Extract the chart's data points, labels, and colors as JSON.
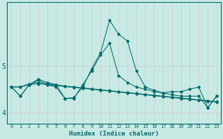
{
  "xlabel": "Humidex (Indice chaleur)",
  "ylabel": "",
  "bg_color": "#c8eae4",
  "line_color": "#006b6b",
  "grid_color": "#e8e8e8",
  "xlim": [
    -0.5,
    23.5
  ],
  "ylim": [
    3.75,
    6.4
  ],
  "yticks": [
    4,
    5
  ],
  "xticks": [
    0,
    1,
    2,
    3,
    4,
    5,
    6,
    7,
    8,
    9,
    10,
    11,
    12,
    13,
    14,
    15,
    16,
    17,
    18,
    19,
    20,
    21,
    22,
    23
  ],
  "series": [
    [
      4.55,
      4.35,
      4.6,
      4.7,
      4.6,
      4.55,
      4.3,
      4.32,
      4.55,
      4.95,
      5.3,
      6.0,
      5.7,
      5.55,
      4.9,
      4.55,
      4.48,
      4.42,
      4.45,
      4.45,
      4.5,
      4.55,
      4.1,
      4.35
    ],
    [
      4.55,
      4.35,
      4.6,
      4.72,
      4.65,
      4.6,
      4.3,
      4.3,
      4.6,
      4.9,
      5.25,
      5.5,
      4.8,
      4.65,
      4.55,
      4.5,
      4.45,
      4.42,
      4.38,
      4.35,
      4.35,
      4.35,
      4.1,
      4.35
    ],
    [
      4.55,
      4.55,
      4.62,
      4.65,
      4.62,
      4.6,
      4.57,
      4.55,
      4.53,
      4.51,
      4.49,
      4.47,
      4.45,
      4.43,
      4.41,
      4.39,
      4.37,
      4.35,
      4.33,
      4.31,
      4.29,
      4.27,
      4.25,
      4.23
    ],
    [
      4.55,
      4.55,
      4.6,
      4.62,
      4.6,
      4.58,
      4.56,
      4.54,
      4.52,
      4.5,
      4.48,
      4.46,
      4.44,
      4.42,
      4.4,
      4.38,
      4.36,
      4.34,
      4.32,
      4.3,
      4.28,
      4.26,
      4.24,
      4.22
    ]
  ]
}
